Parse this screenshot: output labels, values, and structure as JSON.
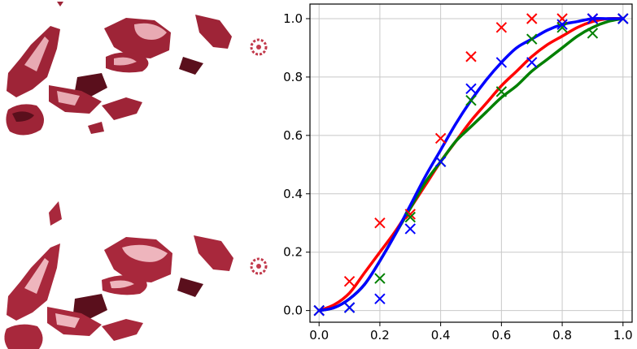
{
  "figure": {
    "panels": [
      {
        "name": "top",
        "icons": [
          "motorcycle-render-icon"
        ],
        "colors": {
          "body": "#9e2437",
          "dark": "#5a0f1c",
          "light": "#e8aab3"
        }
      },
      {
        "name": "bottom",
        "icons": [
          "motorcycle-render-icon"
        ],
        "colors": {
          "body": "#a8283c",
          "dark": "#5a0f1c",
          "light": "#eeb5bd"
        }
      }
    ]
  },
  "chart_data": {
    "type": "line",
    "title": "",
    "xlabel": "",
    "ylabel": "",
    "xlim": [
      -0.03,
      1.03
    ],
    "ylim": [
      -0.04,
      1.05
    ],
    "grid": true,
    "legend": "none",
    "xticks": [
      "0.0",
      "0.2",
      "0.4",
      "0.6",
      "0.8",
      "1.0"
    ],
    "yticks": [
      "0.0",
      "0.2",
      "0.4",
      "0.6",
      "0.8",
      "1.0"
    ],
    "xtick_values": [
      0,
      0.2,
      0.4,
      0.6,
      0.8,
      1.0
    ],
    "ytick_values": [
      0,
      0.2,
      0.4,
      0.6,
      0.8,
      1.0
    ],
    "series": [
      {
        "color": "#ff0000",
        "markers": {
          "x": [
            0.0,
            0.1,
            0.2,
            0.3,
            0.4,
            0.5,
            0.6,
            0.7,
            0.8,
            0.9,
            1.0
          ],
          "y": [
            0.0,
            0.1,
            0.3,
            0.33,
            0.59,
            0.87,
            0.97,
            1.0,
            1.0,
            1.0,
            1.0
          ]
        },
        "curve": {
          "x": [
            0.0,
            0.05,
            0.1,
            0.15,
            0.2,
            0.25,
            0.3,
            0.35,
            0.4,
            0.45,
            0.5,
            0.55,
            0.6,
            0.65,
            0.7,
            0.75,
            0.8,
            0.85,
            0.9,
            0.95,
            1.0
          ],
          "y": [
            0.0,
            0.02,
            0.06,
            0.13,
            0.2,
            0.27,
            0.35,
            0.43,
            0.51,
            0.58,
            0.65,
            0.71,
            0.77,
            0.82,
            0.87,
            0.91,
            0.94,
            0.97,
            0.99,
            1.0,
            1.0
          ]
        }
      },
      {
        "color": "#008000",
        "markers": {
          "x": [
            0.0,
            0.1,
            0.2,
            0.3,
            0.4,
            0.5,
            0.6,
            0.7,
            0.8,
            0.9,
            1.0
          ],
          "y": [
            0.0,
            0.01,
            0.11,
            0.32,
            0.51,
            0.72,
            0.75,
            0.93,
            0.97,
            0.95,
            1.0
          ]
        },
        "curve": {
          "x": [
            0.0,
            0.05,
            0.1,
            0.15,
            0.2,
            0.25,
            0.3,
            0.35,
            0.4,
            0.45,
            0.5,
            0.55,
            0.6,
            0.65,
            0.7,
            0.75,
            0.8,
            0.85,
            0.9,
            0.95,
            1.0
          ],
          "y": [
            0.0,
            0.01,
            0.04,
            0.09,
            0.17,
            0.26,
            0.35,
            0.44,
            0.51,
            0.58,
            0.63,
            0.68,
            0.73,
            0.77,
            0.82,
            0.86,
            0.9,
            0.94,
            0.97,
            0.99,
            1.0
          ]
        }
      },
      {
        "color": "#0000ff",
        "markers": {
          "x": [
            0.0,
            0.1,
            0.2,
            0.3,
            0.4,
            0.5,
            0.6,
            0.7,
            0.8,
            0.9,
            1.0
          ],
          "y": [
            0.0,
            0.01,
            0.04,
            0.28,
            0.51,
            0.76,
            0.85,
            0.85,
            0.98,
            1.0,
            1.0
          ]
        },
        "curve": {
          "x": [
            0.0,
            0.05,
            0.1,
            0.15,
            0.2,
            0.25,
            0.3,
            0.35,
            0.4,
            0.45,
            0.5,
            0.55,
            0.6,
            0.65,
            0.7,
            0.75,
            0.8,
            0.85,
            0.9,
            0.95,
            1.0
          ],
          "y": [
            0.0,
            0.01,
            0.04,
            0.09,
            0.17,
            0.26,
            0.36,
            0.46,
            0.55,
            0.64,
            0.72,
            0.79,
            0.85,
            0.9,
            0.93,
            0.96,
            0.98,
            0.99,
            1.0,
            1.0,
            1.0
          ]
        }
      }
    ]
  }
}
